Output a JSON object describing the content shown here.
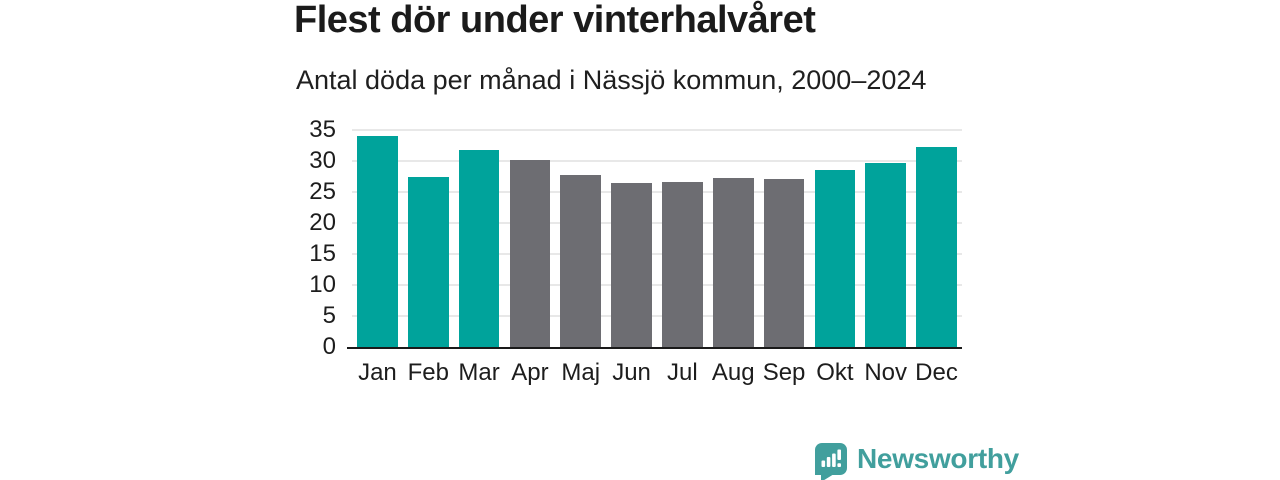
{
  "page": {
    "background": "#ffffff"
  },
  "colors": {
    "accent_teal": "#00a39b",
    "bar_gray": "#6d6d72",
    "grid_line": "#e8e8e8",
    "axis_line": "#1a1a1a",
    "text_dark": "#1b1b1b",
    "logo_teal": "#419f9d"
  },
  "chart_data": {
    "type": "bar",
    "title": "Flest dör under vinterhalvåret",
    "subtitle": "Antal döda per månad i Nässjö kommun, 2000–2024",
    "categories": [
      "Jan",
      "Feb",
      "Mar",
      "Apr",
      "Maj",
      "Jun",
      "Jul",
      "Aug",
      "Sep",
      "Okt",
      "Nov",
      "Dec"
    ],
    "values": [
      34.0,
      27.5,
      31.8,
      30.2,
      27.7,
      26.5,
      26.6,
      27.3,
      27.1,
      28.6,
      29.7,
      32.2
    ],
    "highlighted_months": [
      true,
      true,
      true,
      false,
      false,
      false,
      false,
      false,
      false,
      true,
      true,
      true
    ],
    "highlight_color": "#00a39b",
    "default_color": "#6d6d72",
    "xlabel": "",
    "ylabel": "",
    "ylim": [
      0,
      35
    ],
    "yticks": [
      0,
      5,
      10,
      15,
      20,
      25,
      30,
      35
    ],
    "grid": true,
    "legend": false
  },
  "footer": {
    "logo_text": "Newsworthy"
  }
}
